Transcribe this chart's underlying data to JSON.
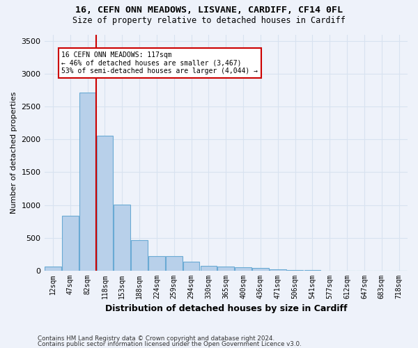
{
  "title1": "16, CEFN ONN MEADOWS, LISVANE, CARDIFF, CF14 0FL",
  "title2": "Size of property relative to detached houses in Cardiff",
  "xlabel": "Distribution of detached houses by size in Cardiff",
  "ylabel": "Number of detached properties",
  "categories": [
    "12sqm",
    "47sqm",
    "82sqm",
    "118sqm",
    "153sqm",
    "188sqm",
    "224sqm",
    "259sqm",
    "294sqm",
    "330sqm",
    "365sqm",
    "400sqm",
    "436sqm",
    "471sqm",
    "506sqm",
    "541sqm",
    "577sqm",
    "612sqm",
    "647sqm",
    "683sqm",
    "718sqm"
  ],
  "values": [
    60,
    840,
    2720,
    2060,
    1010,
    460,
    215,
    215,
    130,
    75,
    55,
    45,
    35,
    20,
    10,
    5,
    0,
    0,
    0,
    0,
    0
  ],
  "bar_color": "#b8d0ea",
  "bar_edge_color": "#6aaad4",
  "vline_color": "#cc0000",
  "annotation_line1": "16 CEFN ONN MEADOWS: 117sqm",
  "annotation_line2": "← 46% of detached houses are smaller (3,467)",
  "annotation_line3": "53% of semi-detached houses are larger (4,044) →",
  "annotation_box_color": "#cc0000",
  "ylim": [
    0,
    3600
  ],
  "yticks": [
    0,
    500,
    1000,
    1500,
    2000,
    2500,
    3000,
    3500
  ],
  "background_color": "#eef2fa",
  "grid_color": "#d8e2f0",
  "footer1": "Contains HM Land Registry data © Crown copyright and database right 2024.",
  "footer2": "Contains public sector information licensed under the Open Government Licence v3.0."
}
